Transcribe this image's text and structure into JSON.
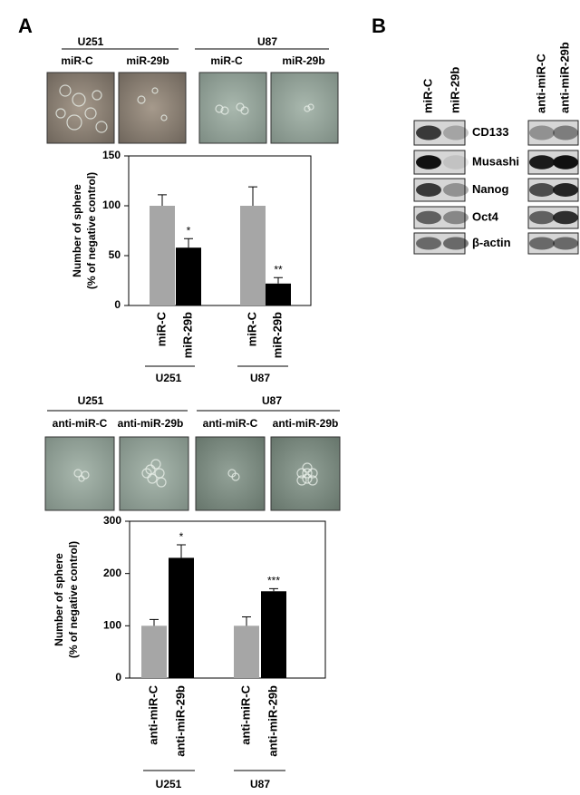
{
  "panel_labels": [
    "A",
    "B"
  ],
  "chart_data": [
    {
      "type": "bar",
      "groups": [
        "U251",
        "U87"
      ],
      "categories": [
        "miR-C",
        "miR-29b",
        "miR-C",
        "miR-29b"
      ],
      "values": [
        100,
        58,
        100,
        22
      ],
      "errors": [
        11,
        9,
        19,
        6
      ],
      "significance": [
        null,
        "*",
        null,
        "**"
      ],
      "colors": [
        "#a6a6a6",
        "#000000",
        "#a6a6a6",
        "#000000"
      ],
      "ylabel": [
        "Number of sphere",
        "(% of negative control)"
      ],
      "ylim": [
        0,
        150
      ],
      "yticks": [
        0,
        50,
        100,
        150
      ]
    },
    {
      "type": "bar",
      "groups": [
        "U251",
        "U87"
      ],
      "categories": [
        "anti-miR-C",
        "anti-miR-29b",
        "anti-miR-C",
        "anti-miR-29b"
      ],
      "values": [
        100,
        230,
        100,
        166
      ],
      "errors": [
        12,
        25,
        17,
        5
      ],
      "significance": [
        null,
        "*",
        null,
        "***"
      ],
      "colors": [
        "#a6a6a6",
        "#000000",
        "#a6a6a6",
        "#000000"
      ],
      "ylabel": [
        "Number of sphere",
        "(% of negative control)"
      ],
      "ylim": [
        0,
        300
      ],
      "yticks": [
        0,
        100,
        200,
        300
      ]
    }
  ],
  "blot": {
    "lanes": [
      [
        "miR-C",
        "miR-29b"
      ],
      [
        "anti-miR-C",
        "anti-miR-29b"
      ]
    ],
    "proteins": [
      "CD133",
      "Musashi",
      "Nanog",
      "Oct4",
      "β-actin"
    ]
  }
}
